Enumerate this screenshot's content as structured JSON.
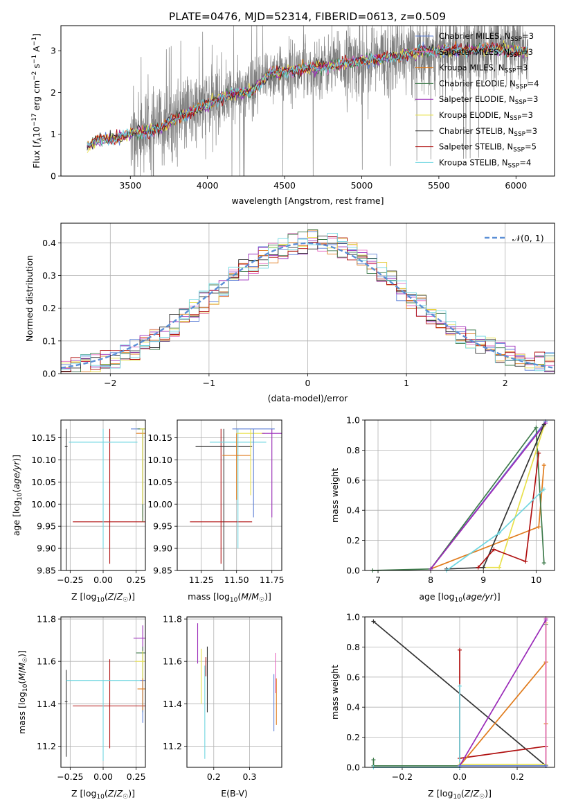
{
  "figure_title": "PLATE=0476, MJD=52314, FIBERID=0613, z=0.509",
  "legend_main": [
    {
      "label": "Chabrier MILES, N",
      "sub": "SSP",
      "suffix": "=3",
      "color": "#5b7fd6"
    },
    {
      "label": "Salpeter MILES, N",
      "sub": "SSP",
      "suffix": "=3",
      "color": "#e66ac0"
    },
    {
      "label": "Kroupa MILES, N",
      "sub": "SSP",
      "suffix": "=3",
      "color": "#e07b1c"
    },
    {
      "label": "Chabrier ELODIE, N",
      "sub": "SSP",
      "suffix": "=4",
      "color": "#3d7a4a"
    },
    {
      "label": "Salpeter ELODIE, N",
      "sub": "SSP",
      "suffix": "=3",
      "color": "#9a2ab8"
    },
    {
      "label": "Kroupa ELODIE, N",
      "sub": "SSP",
      "suffix": "=3",
      "color": "#e8e04a"
    },
    {
      "label": "Chabrier STELIB, N",
      "sub": "SSP",
      "suffix": "=3",
      "color": "#333333"
    },
    {
      "label": "Salpeter STELIB, N",
      "sub": "SSP",
      "suffix": "=5",
      "color": "#b01010"
    },
    {
      "label": "Kroupa STELIB, N",
      "sub": "SSP",
      "suffix": "=4",
      "color": "#6fd6e0"
    }
  ],
  "chart_data": [
    {
      "id": "spectrum",
      "type": "line",
      "xlabel": "wavelength [Angstrom, rest frame]",
      "ylabel": "Flux [f_λ 10^-17 erg cm^-2 s^-1 A^-1]",
      "xlim": [
        3050,
        6250
      ],
      "ylim": [
        0,
        3.6
      ],
      "xticks": [
        3500,
        4000,
        4500,
        5000,
        5500,
        6000
      ],
      "yticks": [
        0,
        1,
        2,
        3
      ],
      "continuum": [
        [
          3220,
          0.7
        ],
        [
          3300,
          0.88
        ],
        [
          3400,
          0.9
        ],
        [
          3500,
          1.0
        ],
        [
          3700,
          1.15
        ],
        [
          3800,
          1.4
        ],
        [
          4000,
          1.7
        ],
        [
          4100,
          1.9
        ],
        [
          4300,
          2.05
        ],
        [
          4400,
          2.45
        ],
        [
          4600,
          2.55
        ],
        [
          4800,
          2.65
        ],
        [
          5000,
          2.75
        ],
        [
          5200,
          2.85
        ],
        [
          5400,
          3.0
        ],
        [
          5600,
          3.0
        ],
        [
          5800,
          3.05
        ],
        [
          6000,
          3.0
        ],
        [
          6080,
          2.95
        ]
      ]
    },
    {
      "id": "residuals",
      "type": "histogram",
      "xlabel": "(data-model)/error",
      "ylabel": "Normed distribution",
      "xlim": [
        -2.5,
        2.5
      ],
      "ylim": [
        0,
        0.46
      ],
      "xticks": [
        -2,
        -1,
        0,
        1,
        2
      ],
      "yticks": [
        0.0,
        0.1,
        0.2,
        0.3,
        0.4
      ],
      "reference": {
        "label": "𝒩(0, 1)",
        "mu": 0,
        "sigma": 1,
        "color": "#5b8fd6"
      }
    },
    {
      "id": "age_vs_Z",
      "type": "errorbar",
      "xlabel": "Z [log10(Z/Z☉)]",
      "ylabel": "age  [log10(age/yr)]",
      "xlim": [
        -0.32,
        0.32
      ],
      "ylim": [
        9.85,
        10.19
      ],
      "xticks": [
        -0.25,
        0.0,
        0.25
      ],
      "yticks": [
        9.85,
        9.9,
        9.95,
        10.0,
        10.05,
        10.1,
        10.15
      ],
      "points": [
        {
          "x": 0.05,
          "y": 9.96,
          "xerr": 0.28,
          "yerr_lo": 0.095,
          "yerr_hi": 0.21,
          "color": "#b01010"
        },
        {
          "x": -0.28,
          "y": 10.13,
          "xerr": 0.01,
          "yerr_lo": 0.28,
          "yerr_hi": 0.04,
          "color": "#333333"
        },
        {
          "x": 0.0,
          "y": 10.14,
          "xerr": 0.26,
          "yerr_lo": 0.24,
          "yerr_hi": 0.03,
          "color": "#6fd6e0"
        },
        {
          "x": 0.3,
          "y": 10.17,
          "xerr": 0.09,
          "yerr_lo": 0.2,
          "yerr_hi": 0.0,
          "color": "#5b7fd6"
        },
        {
          "x": 0.3,
          "y": 10.16,
          "xerr": 0.05,
          "yerr_lo": 0.2,
          "yerr_hi": 0.0,
          "color": "#e07b1c"
        },
        {
          "x": 0.3,
          "y": 10.17,
          "xerr": 0.04,
          "yerr_lo": 0.21,
          "yerr_hi": 0.0,
          "color": "#3d7a4a"
        },
        {
          "x": 0.3,
          "y": 10.17,
          "xerr": 0.02,
          "yerr_lo": 0.17,
          "yerr_hi": 0.0,
          "color": "#e8e04a"
        }
      ]
    },
    {
      "id": "age_vs_mass",
      "type": "errorbar",
      "xlabel": "mass [log10(M/M☉)]",
      "ylabel": "",
      "xlim": [
        11.08,
        11.82
      ],
      "ylim": [
        9.85,
        10.19
      ],
      "xticks": [
        11.25,
        11.5,
        11.75
      ],
      "yticks": [
        9.85,
        9.9,
        9.95,
        10.0,
        10.05,
        10.1,
        10.15
      ],
      "points": [
        {
          "x": 11.39,
          "y": 9.96,
          "xerr": 0.22,
          "yerr_lo": 0.095,
          "yerr_hi": 0.21,
          "color": "#b01010"
        },
        {
          "x": 11.41,
          "y": 10.13,
          "xerr": 0.2,
          "yerr_lo": 0.28,
          "yerr_hi": 0.04,
          "color": "#333333"
        },
        {
          "x": 11.51,
          "y": 10.14,
          "xerr": 0.2,
          "yerr_lo": 0.24,
          "yerr_hi": 0.03,
          "color": "#6fd6e0"
        },
        {
          "x": 11.5,
          "y": 10.11,
          "xerr": 0.1,
          "yerr_lo": 0.1,
          "yerr_hi": 0.05,
          "color": "#e07b1c"
        },
        {
          "x": 11.6,
          "y": 10.16,
          "xerr": 0.1,
          "yerr_lo": 0.14,
          "yerr_hi": 0.01,
          "color": "#e8e04a"
        },
        {
          "x": 11.75,
          "y": 10.16,
          "xerr": 0.07,
          "yerr_lo": 0.19,
          "yerr_hi": 0.01,
          "color": "#9a2ab8"
        },
        {
          "x": 11.62,
          "y": 10.17,
          "xerr": 0.15,
          "yerr_lo": 0.2,
          "yerr_hi": 0.0,
          "color": "#5b7fd6"
        }
      ]
    },
    {
      "id": "weight_vs_age",
      "type": "line",
      "xlabel": "age  [log10(age/yr)]",
      "ylabel": "mass weight",
      "xlim": [
        6.75,
        10.35
      ],
      "ylim": [
        0,
        1
      ],
      "xticks": [
        7,
        8,
        9,
        10
      ],
      "yticks": [
        0.0,
        0.2,
        0.4,
        0.6,
        0.8,
        1.0
      ],
      "series": [
        {
          "color": "#5b7fd6",
          "points": [
            [
              8.0,
              0.01
            ],
            [
              10.18,
              0.99
            ]
          ]
        },
        {
          "color": "#e66ac0",
          "points": [
            [
              8.0,
              0.01
            ],
            [
              10.18,
              0.98
            ]
          ]
        },
        {
          "color": "#e07b1c",
          "points": [
            [
              8.0,
              0.01
            ],
            [
              10.05,
              0.29
            ],
            [
              10.15,
              0.7
            ]
          ]
        },
        {
          "color": "#3d7a4a",
          "points": [
            [
              6.9,
              0.0
            ],
            [
              8.0,
              0.01
            ],
            [
              10.0,
              0.95
            ],
            [
              10.15,
              0.05
            ]
          ]
        },
        {
          "color": "#9a2ab8",
          "points": [
            [
              8.0,
              0.01
            ],
            [
              10.18,
              0.98
            ]
          ]
        },
        {
          "color": "#e8e04a",
          "points": [
            [
              9.0,
              0.02
            ],
            [
              9.3,
              0.02
            ],
            [
              10.15,
              0.96
            ]
          ]
        },
        {
          "color": "#333333",
          "points": [
            [
              8.3,
              0.01
            ],
            [
              9.0,
              0.02
            ],
            [
              10.15,
              0.97
            ]
          ]
        },
        {
          "color": "#b01010",
          "points": [
            [
              8.9,
              0.02
            ],
            [
              9.2,
              0.14
            ],
            [
              9.8,
              0.06
            ],
            [
              10.05,
              0.78
            ]
          ]
        },
        {
          "color": "#6fd6e0",
          "points": [
            [
              8.3,
              0.0
            ],
            [
              9.3,
              0.25
            ],
            [
              10.15,
              0.54
            ]
          ]
        }
      ]
    },
    {
      "id": "mass_vs_Z",
      "type": "errorbar",
      "xlabel": "Z [log10(Z/Z☉)]",
      "ylabel": "mass [log10(M/M☉)]",
      "xlim": [
        -0.32,
        0.32
      ],
      "ylim": [
        11.1,
        11.81
      ],
      "xticks": [
        -0.25,
        0.0,
        0.25
      ],
      "yticks": [
        11.2,
        11.4,
        11.6,
        11.8
      ],
      "points": [
        {
          "x": -0.28,
          "y": 11.41,
          "xerr": 0.01,
          "yerr_lo": 0.26,
          "yerr_hi": 0.15,
          "color": "#333333"
        },
        {
          "x": 0.05,
          "y": 11.39,
          "xerr": 0.28,
          "yerr_lo": 0.2,
          "yerr_hi": 0.22,
          "color": "#b01010"
        },
        {
          "x": 0.0,
          "y": 11.51,
          "xerr": 0.28,
          "yerr_lo": 0.38,
          "yerr_hi": 0.0,
          "color": "#6fd6e0"
        },
        {
          "x": 0.3,
          "y": 11.71,
          "xerr": 0.07,
          "yerr_lo": 0.07,
          "yerr_hi": 0.06,
          "color": "#9a2ab8"
        },
        {
          "x": 0.3,
          "y": 11.64,
          "xerr": 0.05,
          "yerr_lo": 0.28,
          "yerr_hi": 0.03,
          "color": "#3d7a4a"
        },
        {
          "x": 0.3,
          "y": 11.6,
          "xerr": 0.06,
          "yerr_lo": 0.1,
          "yerr_hi": 0.05,
          "color": "#e8e04a"
        },
        {
          "x": 0.3,
          "y": 11.51,
          "xerr": 0.02,
          "yerr_lo": 0.2,
          "yerr_hi": 0.0,
          "color": "#5b7fd6"
        },
        {
          "x": 0.3,
          "y": 11.47,
          "xerr": 0.04,
          "yerr_lo": 0.1,
          "yerr_hi": 0.05,
          "color": "#e07b1c"
        }
      ]
    },
    {
      "id": "mass_vs_EBV",
      "type": "errorbar",
      "xlabel": "E(B-V)",
      "ylabel": "",
      "xlim": [
        0.125,
        0.39
      ],
      "ylim": [
        11.1,
        11.81
      ],
      "xticks": [
        0.2,
        0.3
      ],
      "yticks": [
        11.2,
        11.4,
        11.6,
        11.8
      ],
      "points": [
        {
          "x": 0.155,
          "y": 11.71,
          "yerr_lo": 0.12,
          "yerr_hi": 0.07,
          "color": "#9a2ab8"
        },
        {
          "x": 0.165,
          "y": 11.52,
          "yerr_lo": 0.12,
          "yerr_hi": 0.14,
          "color": "#e8e04a"
        },
        {
          "x": 0.175,
          "y": 11.51,
          "yerr_lo": 0.37,
          "yerr_hi": 0.07,
          "color": "#6fd6e0"
        },
        {
          "x": 0.178,
          "y": 11.58,
          "yerr_lo": 0.05,
          "yerr_hi": 0.04,
          "color": "#b01010"
        },
        {
          "x": 0.182,
          "y": 11.52,
          "yerr_lo": 0.16,
          "yerr_hi": 0.15,
          "color": "#333333"
        },
        {
          "x": 0.368,
          "y": 11.45,
          "yerr_lo": 0.18,
          "yerr_hi": 0.09,
          "color": "#5b7fd6"
        },
        {
          "x": 0.372,
          "y": 11.55,
          "yerr_lo": 0.1,
          "yerr_hi": 0.09,
          "color": "#e66ac0"
        },
        {
          "x": 0.375,
          "y": 11.4,
          "yerr_lo": 0.1,
          "yerr_hi": 0.12,
          "color": "#e07b1c"
        }
      ]
    },
    {
      "id": "weight_vs_Z",
      "type": "line",
      "xlabel": "Z [log10(Z/Z☉)]",
      "ylabel": "mass weight",
      "xlim": [
        -0.33,
        0.33
      ],
      "ylim": [
        0,
        1
      ],
      "xticks": [
        -0.2,
        0.0,
        0.2
      ],
      "yticks": [
        0.0,
        0.2,
        0.4,
        0.6,
        0.8,
        1.0
      ],
      "series": [
        {
          "color": "#333333",
          "points": [
            [
              -0.3,
              0.97
            ],
            [
              0.3,
              0.01
            ]
          ]
        },
        {
          "color": "#3d7a4a",
          "points": [
            [
              -0.3,
              0.05
            ],
            [
              -0.3,
              0.01
            ],
            [
              0.3,
              0.01
            ],
            [
              0.3,
              0.95
            ]
          ]
        },
        {
          "color": "#b01010",
          "points": [
            [
              0.0,
              0.78
            ],
            [
              0.0,
              0.06
            ],
            [
              0.3,
              0.14
            ]
          ]
        },
        {
          "color": "#e07b1c",
          "points": [
            [
              0.0,
              0.01
            ],
            [
              0.3,
              0.7
            ],
            [
              0.3,
              0.29
            ]
          ]
        },
        {
          "color": "#6fd6e0",
          "points": [
            [
              -0.3,
              0.0
            ],
            [
              0.0,
              0.0
            ],
            [
              0.0,
              0.54
            ]
          ]
        },
        {
          "color": "#e8e04a",
          "points": [
            [
              0.0,
              0.02
            ],
            [
              0.3,
              0.02
            ],
            [
              0.3,
              0.96
            ]
          ]
        },
        {
          "color": "#e66ac0",
          "points": [
            [
              0.0,
              0.01
            ],
            [
              0.3,
              0.01
            ],
            [
              0.3,
              0.99
            ]
          ]
        },
        {
          "color": "#9a2ab8",
          "points": [
            [
              0.0,
              0.01
            ],
            [
              0.3,
              0.98
            ]
          ]
        },
        {
          "color": "#5b7fd6",
          "points": [
            [
              0.0,
              0.01
            ],
            [
              0.3,
              0.01
            ]
          ]
        }
      ]
    }
  ]
}
